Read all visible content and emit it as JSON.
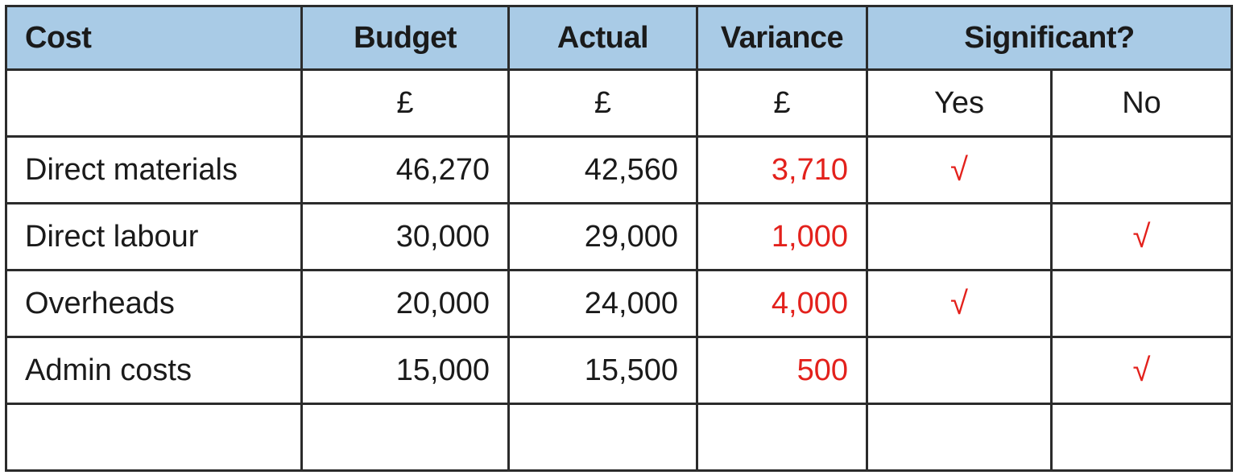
{
  "headers": {
    "cost": "Cost",
    "budget": "Budget",
    "actual": "Actual",
    "variance": "Variance",
    "significant": "Significant?"
  },
  "units": {
    "budget": "£",
    "actual": "£",
    "variance": "£",
    "yes": "Yes",
    "no": "No"
  },
  "rows": [
    {
      "cost": "Direct materials",
      "budget": "46,270",
      "actual": "42,560",
      "variance": "3,710",
      "yes": "√",
      "no": ""
    },
    {
      "cost": "Direct labour",
      "budget": "30,000",
      "actual": "29,000",
      "variance": "1,000",
      "yes": "",
      "no": "√"
    },
    {
      "cost": "Overheads",
      "budget": "20,000",
      "actual": "24,000",
      "variance": "4,000",
      "yes": "√",
      "no": ""
    },
    {
      "cost": "Admin costs",
      "budget": "15,000",
      "actual": "15,500",
      "variance": "500",
      "yes": "",
      "no": "√"
    }
  ],
  "colors": {
    "header_bg": "#a9cbe6",
    "answer_red": "#e3211c",
    "border": "#2b2b2b"
  }
}
